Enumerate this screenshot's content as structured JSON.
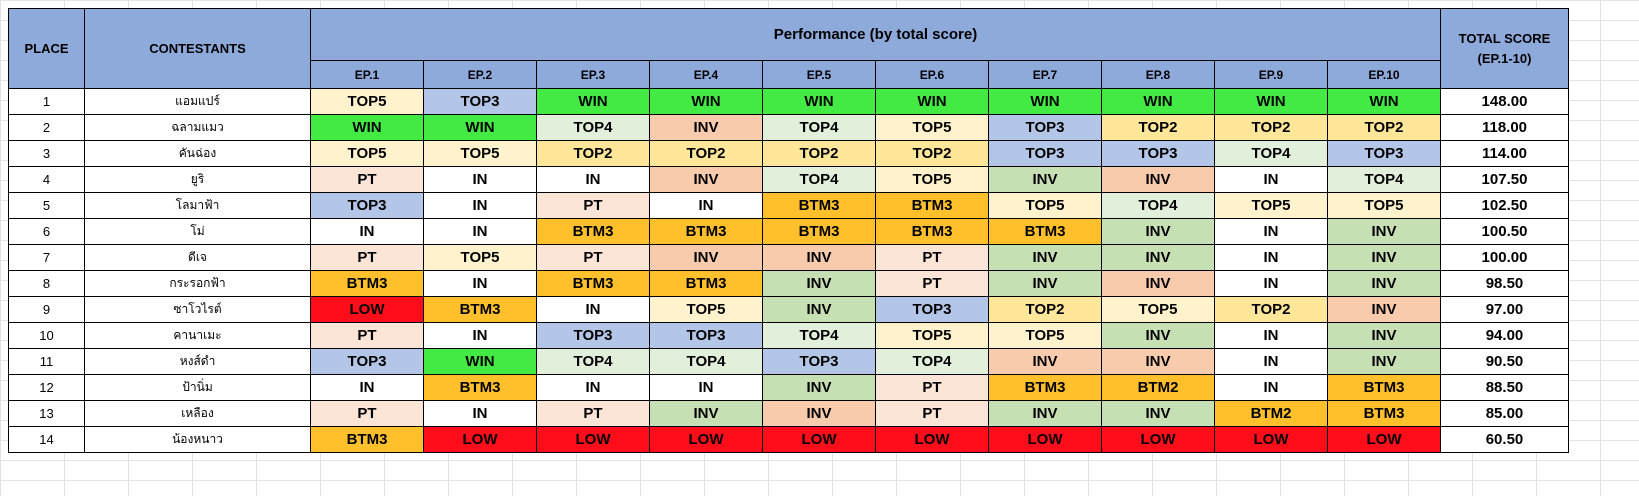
{
  "header": {
    "place": "PLACE",
    "contestants": "CONTESTANTS",
    "performance": "Performance (by total score)",
    "total_line1": "TOTAL SCORE",
    "total_line2": "(EP.1-10)",
    "episodes": [
      "EP.1",
      "EP.2",
      "EP.3",
      "EP.4",
      "EP.5",
      "EP.6",
      "EP.7",
      "EP.8",
      "EP.9",
      "EP.10"
    ]
  },
  "colors": {
    "header": "#8eaadb",
    "WIN": "#43ea43",
    "TOP2": "#ffe699",
    "TOP3": "#b4c6e7",
    "TOP4": "#e2efda",
    "TOP5": "#fff2cc",
    "INV-salmon": "#f8cbad",
    "INV-green": "#c6e0b4",
    "IN": "#ffffff",
    "PT": "#fce4d6",
    "BTM3": "#ffc02c",
    "BTM2": "#ffc02c",
    "LOW": "#ff0d1a"
  },
  "rows": [
    {
      "place": "1",
      "name": "แอมแปร์",
      "total": "148.00",
      "results": [
        {
          "text": "TOP5",
          "color": "TOP5"
        },
        {
          "text": "TOP3",
          "color": "TOP3"
        },
        {
          "text": "WIN",
          "color": "WIN"
        },
        {
          "text": "WIN",
          "color": "WIN"
        },
        {
          "text": "WIN",
          "color": "WIN"
        },
        {
          "text": "WIN",
          "color": "WIN"
        },
        {
          "text": "WIN",
          "color": "WIN"
        },
        {
          "text": "WIN",
          "color": "WIN"
        },
        {
          "text": "WIN",
          "color": "WIN"
        },
        {
          "text": "WIN",
          "color": "WIN"
        }
      ]
    },
    {
      "place": "2",
      "name": "ฉลามแมว",
      "total": "118.00",
      "results": [
        {
          "text": "WIN",
          "color": "WIN"
        },
        {
          "text": "WIN",
          "color": "WIN"
        },
        {
          "text": "TOP4",
          "color": "TOP4"
        },
        {
          "text": "INV",
          "color": "INV-salmon"
        },
        {
          "text": "TOP4",
          "color": "TOP4"
        },
        {
          "text": "TOP5",
          "color": "TOP5"
        },
        {
          "text": "TOP3",
          "color": "TOP3"
        },
        {
          "text": "TOP2",
          "color": "TOP2"
        },
        {
          "text": "TOP2",
          "color": "TOP2"
        },
        {
          "text": "TOP2",
          "color": "TOP2"
        }
      ]
    },
    {
      "place": "3",
      "name": "คันฉ่อง",
      "total": "114.00",
      "results": [
        {
          "text": "TOP5",
          "color": "TOP5"
        },
        {
          "text": "TOP5",
          "color": "TOP5"
        },
        {
          "text": "TOP2",
          "color": "TOP2"
        },
        {
          "text": "TOP2",
          "color": "TOP2"
        },
        {
          "text": "TOP2",
          "color": "TOP2"
        },
        {
          "text": "TOP2",
          "color": "TOP2"
        },
        {
          "text": "TOP3",
          "color": "TOP3"
        },
        {
          "text": "TOP3",
          "color": "TOP3"
        },
        {
          "text": "TOP4",
          "color": "TOP4"
        },
        {
          "text": "TOP3",
          "color": "TOP3"
        }
      ]
    },
    {
      "place": "4",
      "name": "ยูริ",
      "total": "107.50",
      "results": [
        {
          "text": "PT",
          "color": "PT"
        },
        {
          "text": "IN",
          "color": "IN"
        },
        {
          "text": "IN",
          "color": "IN"
        },
        {
          "text": "INV",
          "color": "INV-salmon"
        },
        {
          "text": "TOP4",
          "color": "TOP4"
        },
        {
          "text": "TOP5",
          "color": "TOP5"
        },
        {
          "text": "INV",
          "color": "INV-green"
        },
        {
          "text": "INV",
          "color": "INV-salmon"
        },
        {
          "text": "IN",
          "color": "IN"
        },
        {
          "text": "TOP4",
          "color": "TOP4"
        }
      ]
    },
    {
      "place": "5",
      "name": "โลมาฟ้า",
      "total": "102.50",
      "results": [
        {
          "text": "TOP3",
          "color": "TOP3"
        },
        {
          "text": "IN",
          "color": "IN"
        },
        {
          "text": "PT",
          "color": "PT"
        },
        {
          "text": "IN",
          "color": "IN"
        },
        {
          "text": "BTM3",
          "color": "BTM3"
        },
        {
          "text": "BTM3",
          "color": "BTM3"
        },
        {
          "text": "TOP5",
          "color": "TOP5"
        },
        {
          "text": "TOP4",
          "color": "TOP4"
        },
        {
          "text": "TOP5",
          "color": "TOP5"
        },
        {
          "text": "TOP5",
          "color": "TOP5"
        }
      ]
    },
    {
      "place": "6",
      "name": "โม่",
      "total": "100.50",
      "results": [
        {
          "text": "IN",
          "color": "IN"
        },
        {
          "text": "IN",
          "color": "IN"
        },
        {
          "text": "BTM3",
          "color": "BTM3"
        },
        {
          "text": "BTM3",
          "color": "BTM3"
        },
        {
          "text": "BTM3",
          "color": "BTM3"
        },
        {
          "text": "BTM3",
          "color": "BTM3"
        },
        {
          "text": "BTM3",
          "color": "BTM3"
        },
        {
          "text": "INV",
          "color": "INV-green"
        },
        {
          "text": "IN",
          "color": "IN"
        },
        {
          "text": "INV",
          "color": "INV-green"
        }
      ]
    },
    {
      "place": "7",
      "name": "ดีเจ",
      "total": "100.00",
      "results": [
        {
          "text": "PT",
          "color": "PT"
        },
        {
          "text": "TOP5",
          "color": "TOP5"
        },
        {
          "text": "PT",
          "color": "PT"
        },
        {
          "text": "INV",
          "color": "INV-salmon"
        },
        {
          "text": "INV",
          "color": "INV-salmon"
        },
        {
          "text": "PT",
          "color": "PT"
        },
        {
          "text": "INV",
          "color": "INV-green"
        },
        {
          "text": "INV",
          "color": "INV-green"
        },
        {
          "text": "IN",
          "color": "IN"
        },
        {
          "text": "INV",
          "color": "INV-green"
        }
      ]
    },
    {
      "place": "8",
      "name": "กระรอกฟ้า",
      "total": "98.50",
      "results": [
        {
          "text": "BTM3",
          "color": "BTM3"
        },
        {
          "text": "IN",
          "color": "IN"
        },
        {
          "text": "BTM3",
          "color": "BTM3"
        },
        {
          "text": "BTM3",
          "color": "BTM3"
        },
        {
          "text": "INV",
          "color": "INV-green"
        },
        {
          "text": "PT",
          "color": "PT"
        },
        {
          "text": "INV",
          "color": "INV-green"
        },
        {
          "text": "INV",
          "color": "INV-salmon"
        },
        {
          "text": "IN",
          "color": "IN"
        },
        {
          "text": "INV",
          "color": "INV-green"
        }
      ]
    },
    {
      "place": "9",
      "name": "ซาโวไรต์",
      "total": "97.00",
      "results": [
        {
          "text": "LOW",
          "color": "LOW"
        },
        {
          "text": "BTM3",
          "color": "BTM3"
        },
        {
          "text": "IN",
          "color": "IN"
        },
        {
          "text": "TOP5",
          "color": "TOP5"
        },
        {
          "text": "INV",
          "color": "INV-green"
        },
        {
          "text": "TOP3",
          "color": "TOP3"
        },
        {
          "text": "TOP2",
          "color": "TOP2"
        },
        {
          "text": "TOP5",
          "color": "TOP5"
        },
        {
          "text": "TOP2",
          "color": "TOP2"
        },
        {
          "text": "INV",
          "color": "INV-salmon"
        }
      ]
    },
    {
      "place": "10",
      "name": "คานาเมะ",
      "total": "94.00",
      "results": [
        {
          "text": "PT",
          "color": "PT"
        },
        {
          "text": "IN",
          "color": "IN"
        },
        {
          "text": "TOP3",
          "color": "TOP3"
        },
        {
          "text": "TOP3",
          "color": "TOP3"
        },
        {
          "text": "TOP4",
          "color": "TOP4"
        },
        {
          "text": "TOP5",
          "color": "TOP5"
        },
        {
          "text": "TOP5",
          "color": "TOP5"
        },
        {
          "text": "INV",
          "color": "INV-green"
        },
        {
          "text": "IN",
          "color": "IN"
        },
        {
          "text": "INV",
          "color": "INV-green"
        }
      ]
    },
    {
      "place": "11",
      "name": "หงส์ดำ",
      "total": "90.50",
      "results": [
        {
          "text": "TOP3",
          "color": "TOP3"
        },
        {
          "text": "WIN",
          "color": "WIN"
        },
        {
          "text": "TOP4",
          "color": "TOP4"
        },
        {
          "text": "TOP4",
          "color": "TOP4"
        },
        {
          "text": "TOP3",
          "color": "TOP3"
        },
        {
          "text": "TOP4",
          "color": "TOP4"
        },
        {
          "text": "INV",
          "color": "INV-salmon"
        },
        {
          "text": "INV",
          "color": "INV-salmon"
        },
        {
          "text": "IN",
          "color": "IN"
        },
        {
          "text": "INV",
          "color": "INV-green"
        }
      ]
    },
    {
      "place": "12",
      "name": "ป้านิ่ม",
      "total": "88.50",
      "results": [
        {
          "text": "IN",
          "color": "IN"
        },
        {
          "text": "BTM3",
          "color": "BTM3"
        },
        {
          "text": "IN",
          "color": "IN"
        },
        {
          "text": "IN",
          "color": "IN"
        },
        {
          "text": "INV",
          "color": "INV-green"
        },
        {
          "text": "PT",
          "color": "PT"
        },
        {
          "text": "BTM3",
          "color": "BTM3"
        },
        {
          "text": "BTM2",
          "color": "BTM2"
        },
        {
          "text": "IN",
          "color": "IN"
        },
        {
          "text": "BTM3",
          "color": "BTM3"
        }
      ]
    },
    {
      "place": "13",
      "name": "เหลือง",
      "total": "85.00",
      "results": [
        {
          "text": "PT",
          "color": "PT"
        },
        {
          "text": "IN",
          "color": "IN"
        },
        {
          "text": "PT",
          "color": "PT"
        },
        {
          "text": "INV",
          "color": "INV-green"
        },
        {
          "text": "INV",
          "color": "INV-salmon"
        },
        {
          "text": "PT",
          "color": "PT"
        },
        {
          "text": "INV",
          "color": "INV-green"
        },
        {
          "text": "INV",
          "color": "INV-green"
        },
        {
          "text": "BTM2",
          "color": "BTM2"
        },
        {
          "text": "BTM3",
          "color": "BTM3"
        }
      ]
    },
    {
      "place": "14",
      "name": "น้องหนาว",
      "total": "60.50",
      "results": [
        {
          "text": "BTM3",
          "color": "BTM3"
        },
        {
          "text": "LOW",
          "color": "LOW"
        },
        {
          "text": "LOW",
          "color": "LOW"
        },
        {
          "text": "LOW",
          "color": "LOW"
        },
        {
          "text": "LOW",
          "color": "LOW"
        },
        {
          "text": "LOW",
          "color": "LOW"
        },
        {
          "text": "LOW",
          "color": "LOW"
        },
        {
          "text": "LOW",
          "color": "LOW"
        },
        {
          "text": "LOW",
          "color": "LOW"
        },
        {
          "text": "LOW",
          "color": "LOW"
        }
      ]
    }
  ]
}
